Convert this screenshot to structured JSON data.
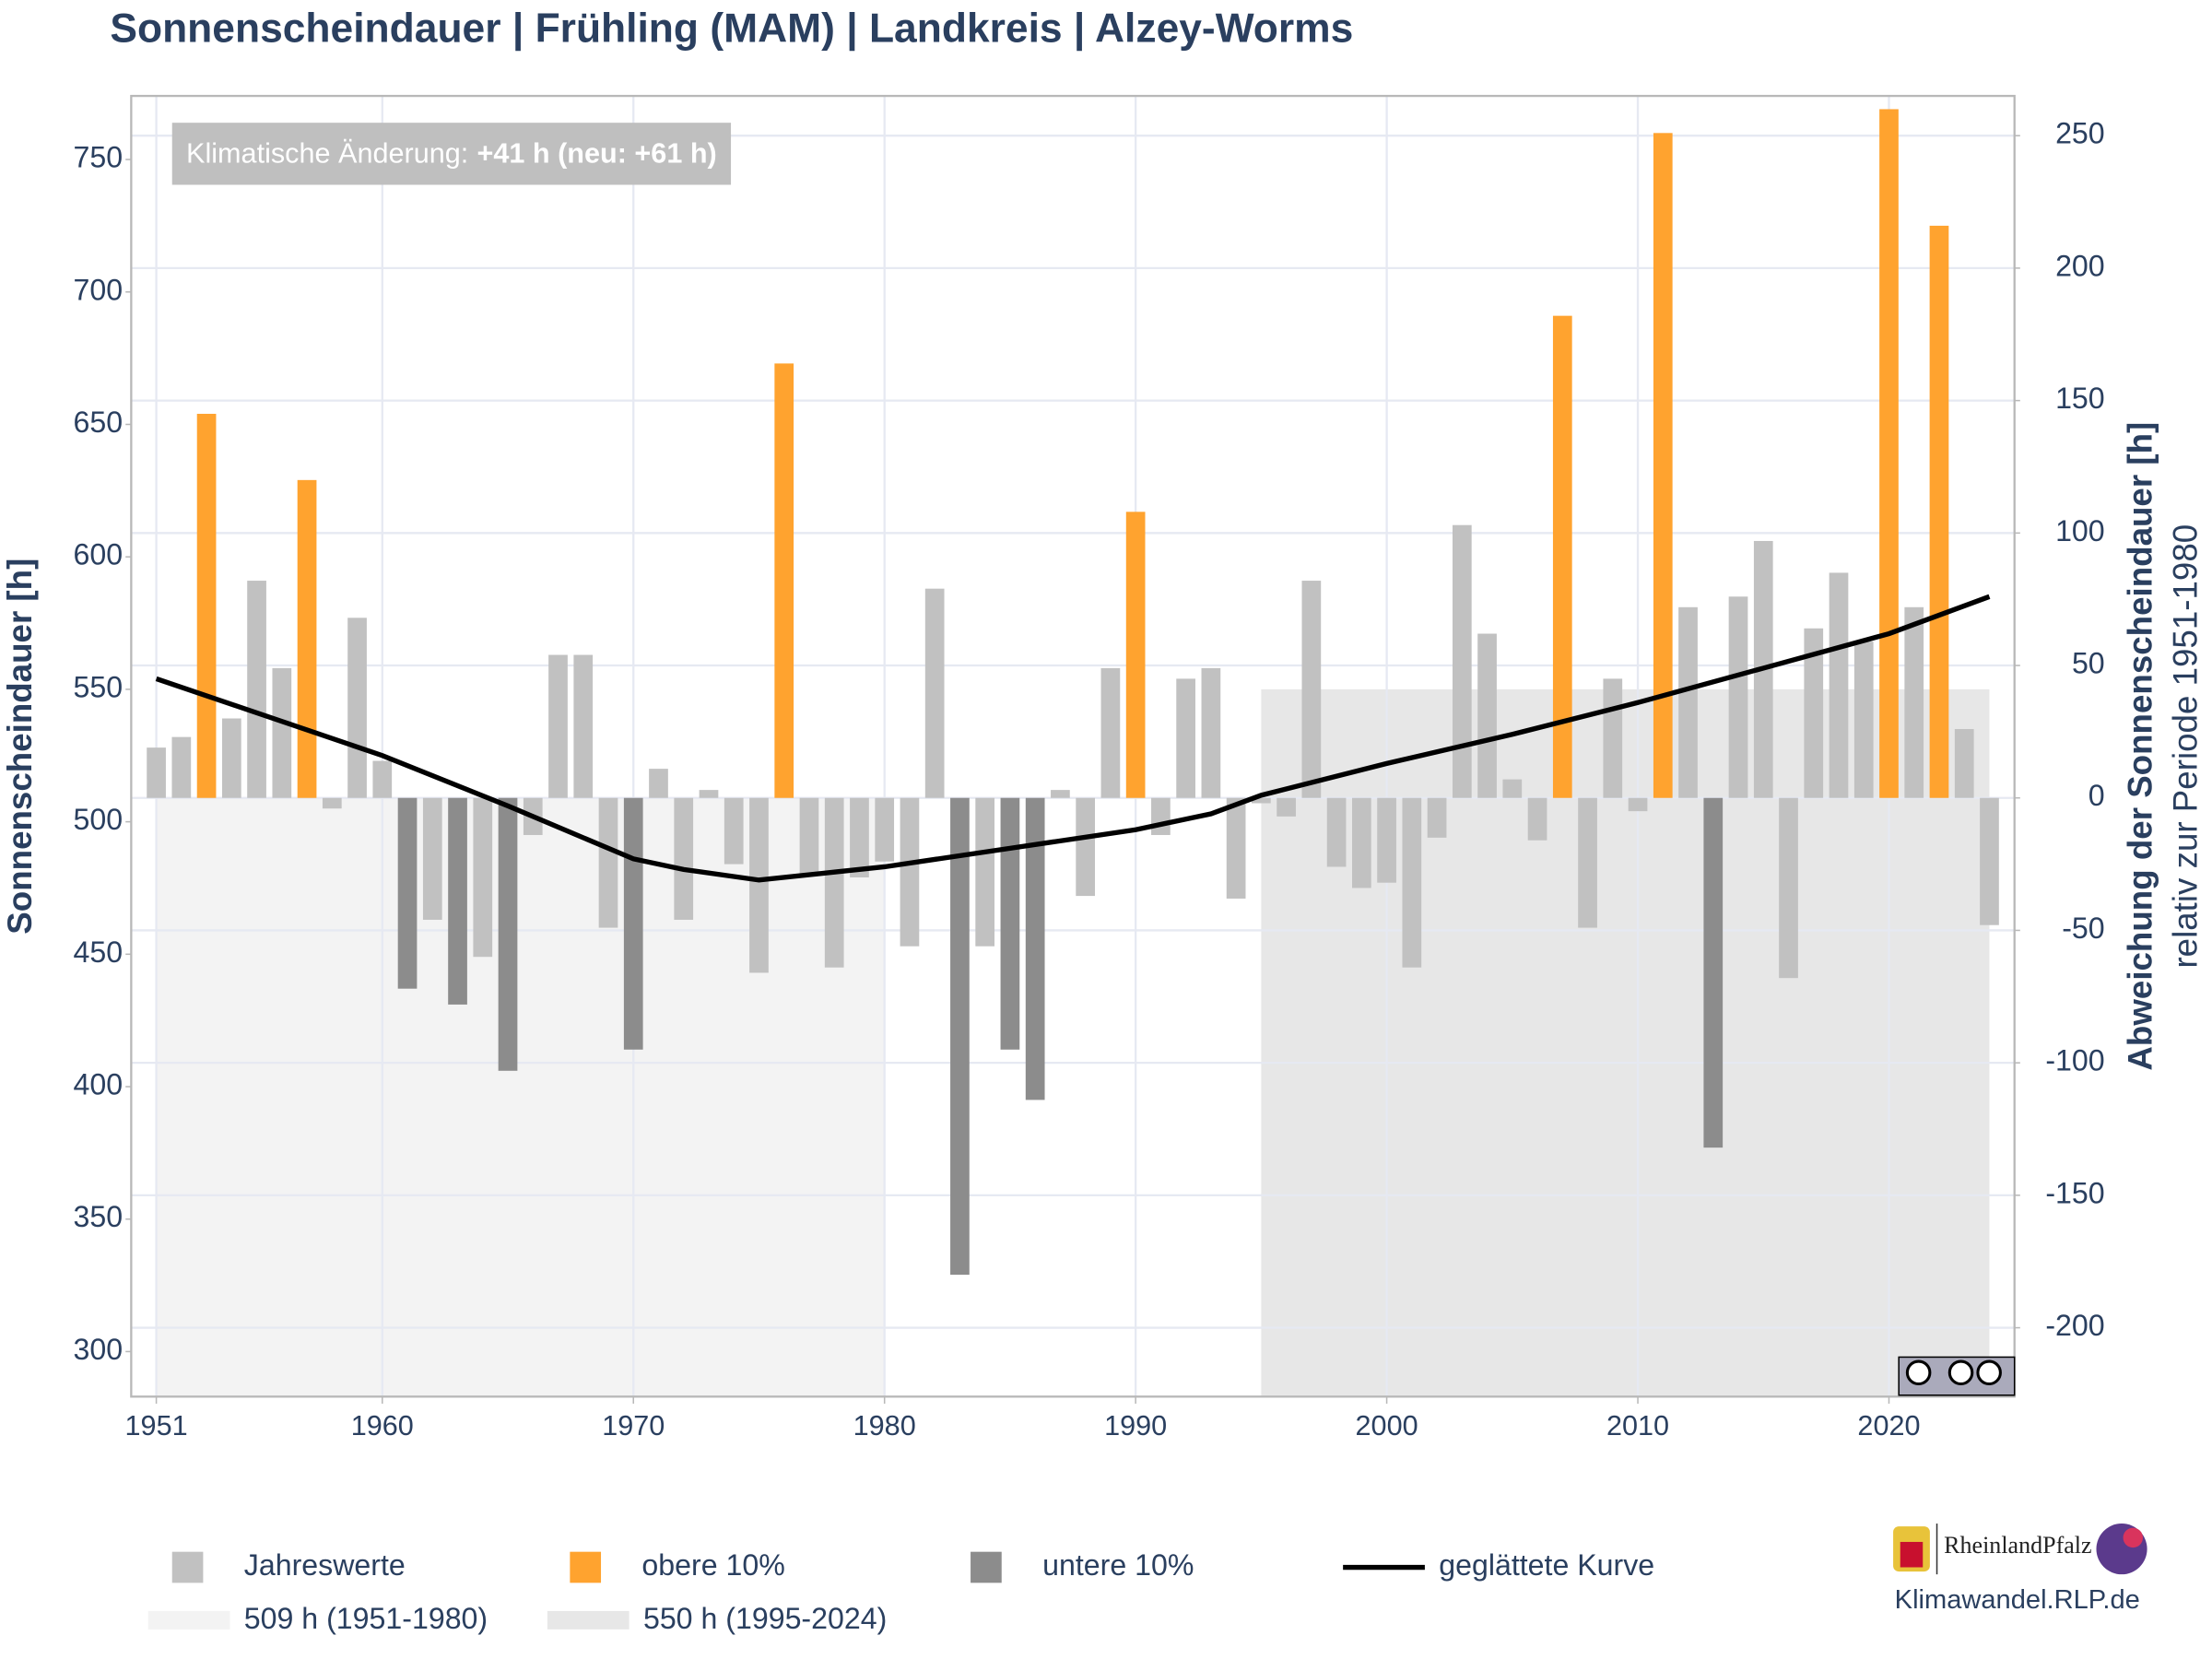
{
  "chart_data": {
    "type": "bar",
    "title": "Sonnenscheindauer | Frühling (MAM) | Landkreis | Alzey-Worms",
    "y_label": "Sonnenscheindauer [h]",
    "y2_label": "Abweichung der Sonnenscheindauer [h]",
    "y2_sublabel": "relativ zur Periode 1951-1980",
    "annotation": {
      "label": "Klimatische Änderung:",
      "value": "+41 h (neu: +61 h)"
    },
    "source": "Klimawandel.RLP.de",
    "logo": "RheinlandPfalz",
    "xlim": [
      1950,
      2025
    ],
    "xticks": [
      1951,
      1960,
      1970,
      1980,
      1990,
      2000,
      2010,
      2020
    ],
    "ylim": [
      283,
      774
    ],
    "yticks": [
      300,
      350,
      400,
      450,
      500,
      550,
      600,
      650,
      700,
      750
    ],
    "y2lim": [
      -226,
      265
    ],
    "y2ticks": [
      -200,
      -150,
      -100,
      -50,
      0,
      50,
      100,
      150,
      200,
      250
    ],
    "grid": true,
    "baseline": 509,
    "reference_periods": [
      {
        "name": "509 h (1951-1980)",
        "value": 509,
        "x": [
          1951,
          1980
        ],
        "color": "#f3f3f3"
      },
      {
        "name": "550 h (1995-2024)",
        "value": 550,
        "x": [
          1995,
          2024
        ],
        "color": "#e7e7e7"
      }
    ],
    "series": [
      {
        "name": "Jahreswerte",
        "color": "#c1c1c1",
        "x": [
          1951,
          1952,
          1954,
          1955,
          1956,
          1958,
          1959,
          1960,
          1962,
          1964,
          1966,
          1967,
          1968,
          1969,
          1971,
          1972,
          1973,
          1974,
          1975,
          1977,
          1978,
          1979,
          1980,
          1981,
          1982,
          1984,
          1987,
          1988,
          1989,
          1991,
          1992,
          1993,
          1994,
          1995,
          1996,
          1997,
          1998,
          1999,
          2000,
          2001,
          2002,
          2003,
          2004,
          2005,
          2006,
          2008,
          2009,
          2010,
          2012,
          2014,
          2015,
          2016,
          2017,
          2018,
          2019,
          2021,
          2023,
          2024
        ],
        "values": [
          528,
          532,
          539,
          591,
          558,
          505,
          577,
          523,
          463,
          449,
          495,
          563,
          563,
          460,
          520,
          463,
          512,
          484,
          443,
          480,
          445,
          479,
          485,
          453,
          588,
          453,
          512,
          472,
          558,
          495,
          554,
          558,
          471,
          507,
          502,
          591,
          483,
          475,
          477,
          445,
          494,
          612,
          571,
          516,
          493,
          460,
          554,
          504,
          581,
          585,
          606,
          441,
          573,
          594,
          568,
          581,
          535,
          461
        ]
      },
      {
        "name": "obere 10%",
        "color": "#ffa32f",
        "x": [
          1953,
          1957,
          1976,
          1990,
          2007,
          2011,
          2020,
          2022
        ],
        "values": [
          654,
          629,
          673,
          617,
          691,
          760,
          769,
          725
        ]
      },
      {
        "name": "untere 10%",
        "color": "#8c8c8c",
        "x": [
          1961,
          1963,
          1965,
          1970,
          1983,
          1985,
          1986,
          2013
        ],
        "values": [
          437,
          431,
          406,
          414,
          329,
          414,
          395,
          377
        ]
      }
    ],
    "smoothed": {
      "name": "geglättete Kurve",
      "color": "#000000",
      "x": [
        1951,
        1960,
        1965,
        1970,
        1972,
        1975,
        1978,
        1980,
        1985,
        1990,
        1993,
        1995,
        2000,
        2005,
        2010,
        2015,
        2020,
        2024
      ],
      "values": [
        554,
        525,
        506,
        486,
        482,
        478,
        481,
        483,
        490,
        497,
        503,
        510,
        522,
        533,
        545,
        558,
        571,
        585
      ]
    }
  }
}
